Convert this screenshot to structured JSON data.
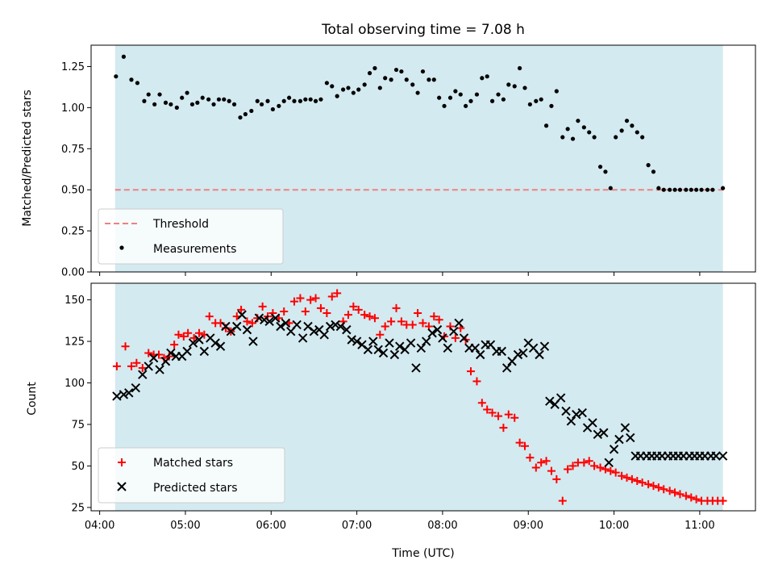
{
  "chart_data": {
    "type": "scatter",
    "title": "Total observing time = 7.08 h",
    "xlabel": "Time (UTC)",
    "x_ticks": [
      "04:00",
      "05:00",
      "06:00",
      "07:00",
      "08:00",
      "09:00",
      "10:00",
      "11:00"
    ],
    "x_tick_hours": [
      4,
      5,
      6,
      7,
      8,
      9,
      10,
      11
    ],
    "xlim": [
      3.9,
      11.65
    ],
    "shaded_range": [
      4.18,
      11.27
    ],
    "colors": {
      "shade": "#d3eaf0",
      "threshold": "#f08080",
      "measurements": "#000000",
      "matched": "#ff0000",
      "predicted": "#000000"
    },
    "top": {
      "ylabel": "Matched/Predicted stars",
      "ylim": [
        0,
        1.38
      ],
      "y_ticks": [
        "0.00",
        "0.25",
        "0.50",
        "0.75",
        "1.00",
        "1.25"
      ],
      "y_tick_values": [
        0,
        0.25,
        0.5,
        0.75,
        1.0,
        1.25
      ],
      "legend_position": "lower-left",
      "threshold": {
        "name": "Threshold",
        "value": 0.5
      },
      "measurements": {
        "name": "Measurements",
        "x": [
          4.19,
          4.28,
          4.37,
          4.44,
          4.52,
          4.57,
          4.64,
          4.7,
          4.77,
          4.83,
          4.9,
          4.96,
          5.02,
          5.08,
          5.14,
          5.2,
          5.27,
          5.33,
          5.39,
          5.45,
          5.51,
          5.57,
          5.64,
          5.7,
          5.77,
          5.84,
          5.89,
          5.96,
          6.02,
          6.09,
          6.15,
          6.21,
          6.27,
          6.34,
          6.4,
          6.46,
          6.52,
          6.58,
          6.65,
          6.71,
          6.77,
          6.84,
          6.9,
          6.96,
          7.02,
          7.09,
          7.15,
          7.21,
          7.27,
          7.33,
          7.4,
          7.46,
          7.52,
          7.58,
          7.65,
          7.71,
          7.77,
          7.84,
          7.9,
          7.96,
          8.02,
          8.09,
          8.15,
          8.21,
          8.27,
          8.33,
          8.4,
          8.46,
          8.52,
          8.58,
          8.65,
          8.71,
          8.77,
          8.84,
          8.9,
          8.96,
          9.02,
          9.09,
          9.15,
          9.21,
          9.27,
          9.33,
          9.4,
          9.46,
          9.52,
          9.58,
          9.65,
          9.71,
          9.77,
          9.84,
          9.9,
          9.96,
          10.02,
          10.09,
          10.15,
          10.21,
          10.27,
          10.33,
          10.4,
          10.46,
          10.52,
          10.58,
          10.65,
          10.71,
          10.77,
          10.84,
          10.9,
          10.96,
          11.02,
          11.09,
          11.15,
          11.27
        ],
        "y": [
          1.19,
          1.31,
          1.17,
          1.15,
          1.04,
          1.08,
          1.02,
          1.08,
          1.03,
          1.02,
          1.0,
          1.06,
          1.09,
          1.02,
          1.03,
          1.06,
          1.05,
          1.02,
          1.05,
          1.05,
          1.04,
          1.02,
          0.94,
          0.96,
          0.98,
          1.04,
          1.02,
          1.04,
          0.99,
          1.01,
          1.04,
          1.06,
          1.04,
          1.04,
          1.05,
          1.05,
          1.04,
          1.05,
          1.15,
          1.13,
          1.07,
          1.11,
          1.12,
          1.09,
          1.11,
          1.14,
          1.21,
          1.24,
          1.12,
          1.18,
          1.17,
          1.23,
          1.22,
          1.17,
          1.14,
          1.09,
          1.22,
          1.17,
          1.17,
          1.06,
          1.01,
          1.06,
          1.1,
          1.08,
          1.01,
          1.04,
          1.08,
          1.18,
          1.19,
          1.04,
          1.08,
          1.05,
          1.14,
          1.13,
          1.24,
          1.12,
          1.02,
          1.04,
          1.05,
          0.89,
          1.01,
          1.1,
          0.82,
          0.87,
          0.81,
          0.92,
          0.88,
          0.85,
          0.82,
          0.64,
          0.61,
          0.51,
          0.82,
          0.86,
          0.92,
          0.89,
          0.85,
          0.82,
          0.65,
          0.61,
          0.51,
          0.5,
          0.5,
          0.5,
          0.5,
          0.5,
          0.5,
          0.5,
          0.5,
          0.5,
          0.5,
          0.51
        ]
      }
    },
    "bottom": {
      "ylabel": "Count",
      "ylim": [
        23,
        160
      ],
      "y_ticks": [
        "25",
        "50",
        "75",
        "100",
        "125",
        "150"
      ],
      "y_tick_values": [
        25,
        50,
        75,
        100,
        125,
        150
      ],
      "legend_position": "lower-left",
      "series": [
        {
          "name": "Matched stars",
          "marker": "plus",
          "x": [
            4.2,
            4.3,
            4.37,
            4.43,
            4.5,
            4.57,
            4.63,
            4.69,
            4.75,
            4.81,
            4.87,
            4.92,
            4.98,
            5.03,
            5.1,
            5.16,
            5.22,
            5.28,
            5.35,
            5.41,
            5.47,
            5.53,
            5.6,
            5.65,
            5.72,
            5.78,
            5.84,
            5.9,
            5.96,
            6.02,
            6.09,
            6.15,
            6.21,
            6.27,
            6.34,
            6.4,
            6.46,
            6.52,
            6.58,
            6.65,
            6.71,
            6.77,
            6.84,
            6.9,
            6.96,
            7.02,
            7.09,
            7.15,
            7.21,
            7.27,
            7.33,
            7.4,
            7.46,
            7.52,
            7.58,
            7.65,
            7.71,
            7.77,
            7.84,
            7.9,
            7.96,
            8.02,
            8.09,
            8.15,
            8.21,
            8.27,
            8.33,
            8.4,
            8.46,
            8.52,
            8.58,
            8.65,
            8.71,
            8.77,
            8.84,
            8.9,
            8.96,
            9.02,
            9.09,
            9.15,
            9.21,
            9.27,
            9.33,
            9.4,
            9.46,
            9.52,
            9.58,
            9.65,
            9.71,
            9.77,
            9.84,
            9.9,
            9.96,
            10.02,
            10.09,
            10.15,
            10.21,
            10.27,
            10.33,
            10.4,
            10.46,
            10.52,
            10.58,
            10.65,
            10.71,
            10.77,
            10.84,
            10.9,
            10.96,
            11.02,
            11.09,
            11.15,
            11.21,
            11.27
          ],
          "y": [
            110,
            122,
            110,
            112,
            109,
            118,
            117,
            117,
            115,
            116,
            123,
            129,
            128,
            130,
            127,
            130,
            129,
            140,
            136,
            136,
            133,
            131,
            140,
            144,
            137,
            136,
            139,
            146,
            140,
            142,
            139,
            143,
            136,
            149,
            151,
            143,
            150,
            151,
            145,
            142,
            152,
            154,
            137,
            141,
            146,
            144,
            141,
            140,
            139,
            129,
            134,
            137,
            145,
            137,
            135,
            135,
            142,
            136,
            134,
            140,
            138,
            128,
            134,
            127,
            133,
            126,
            107,
            101,
            88,
            84,
            82,
            80,
            73,
            81,
            79,
            64,
            62,
            55,
            49,
            52,
            53,
            47,
            42,
            29,
            48,
            50,
            52,
            52,
            53,
            50,
            49,
            48,
            47,
            46,
            44,
            43,
            42,
            41,
            40,
            39,
            38,
            37,
            36,
            35,
            34,
            33,
            32,
            31,
            30,
            29,
            29,
            29,
            29,
            29
          ]
        },
        {
          "name": "Predicted stars",
          "marker": "x",
          "x": [
            4.2,
            4.28,
            4.34,
            4.42,
            4.5,
            4.57,
            4.63,
            4.7,
            4.77,
            4.83,
            4.89,
            4.96,
            5.02,
            5.09,
            5.16,
            5.22,
            5.29,
            5.35,
            5.41,
            5.47,
            5.53,
            5.6,
            5.66,
            5.72,
            5.79,
            5.86,
            5.92,
            5.98,
            6.05,
            6.11,
            6.17,
            6.23,
            6.3,
            6.37,
            6.43,
            6.5,
            6.56,
            6.62,
            6.69,
            6.75,
            6.81,
            6.88,
            6.94,
            7.0,
            7.06,
            7.13,
            7.19,
            7.25,
            7.31,
            7.38,
            7.44,
            7.5,
            7.56,
            7.63,
            7.69,
            7.75,
            7.81,
            7.88,
            7.94,
            8.0,
            8.06,
            8.13,
            8.19,
            8.25,
            8.31,
            8.38,
            8.44,
            8.5,
            8.56,
            8.63,
            8.69,
            8.75,
            8.81,
            8.88,
            8.94,
            9.0,
            9.06,
            9.13,
            9.19,
            9.25,
            9.31,
            9.38,
            9.44,
            9.5,
            9.56,
            9.63,
            9.69,
            9.75,
            9.81,
            9.88,
            9.94,
            10.0,
            10.06,
            10.13,
            10.19,
            10.25,
            10.31,
            10.38,
            10.44,
            10.5,
            10.56,
            10.63,
            10.69,
            10.75,
            10.81,
            10.88,
            10.94,
            11.0,
            11.06,
            11.13,
            11.19,
            11.27
          ],
          "y": [
            92,
            93,
            94,
            97,
            105,
            110,
            115,
            108,
            113,
            118,
            116,
            116,
            119,
            124,
            126,
            119,
            127,
            124,
            122,
            134,
            131,
            134,
            141,
            132,
            125,
            139,
            138,
            137,
            139,
            134,
            136,
            131,
            135,
            127,
            134,
            131,
            132,
            129,
            134,
            135,
            134,
            132,
            126,
            125,
            123,
            120,
            125,
            120,
            118,
            124,
            117,
            122,
            120,
            124,
            109,
            121,
            125,
            130,
            132,
            127,
            121,
            131,
            136,
            127,
            121,
            121,
            117,
            123,
            123,
            119,
            119,
            109,
            113,
            117,
            118,
            124,
            121,
            117,
            122,
            89,
            87,
            91,
            83,
            77,
            81,
            82,
            73,
            76,
            69,
            70,
            52,
            60,
            66,
            73,
            67,
            56,
            56,
            56,
            56,
            56,
            56,
            56,
            56,
            56,
            56,
            56,
            56,
            56,
            56,
            56,
            56,
            56
          ]
        }
      ]
    }
  }
}
